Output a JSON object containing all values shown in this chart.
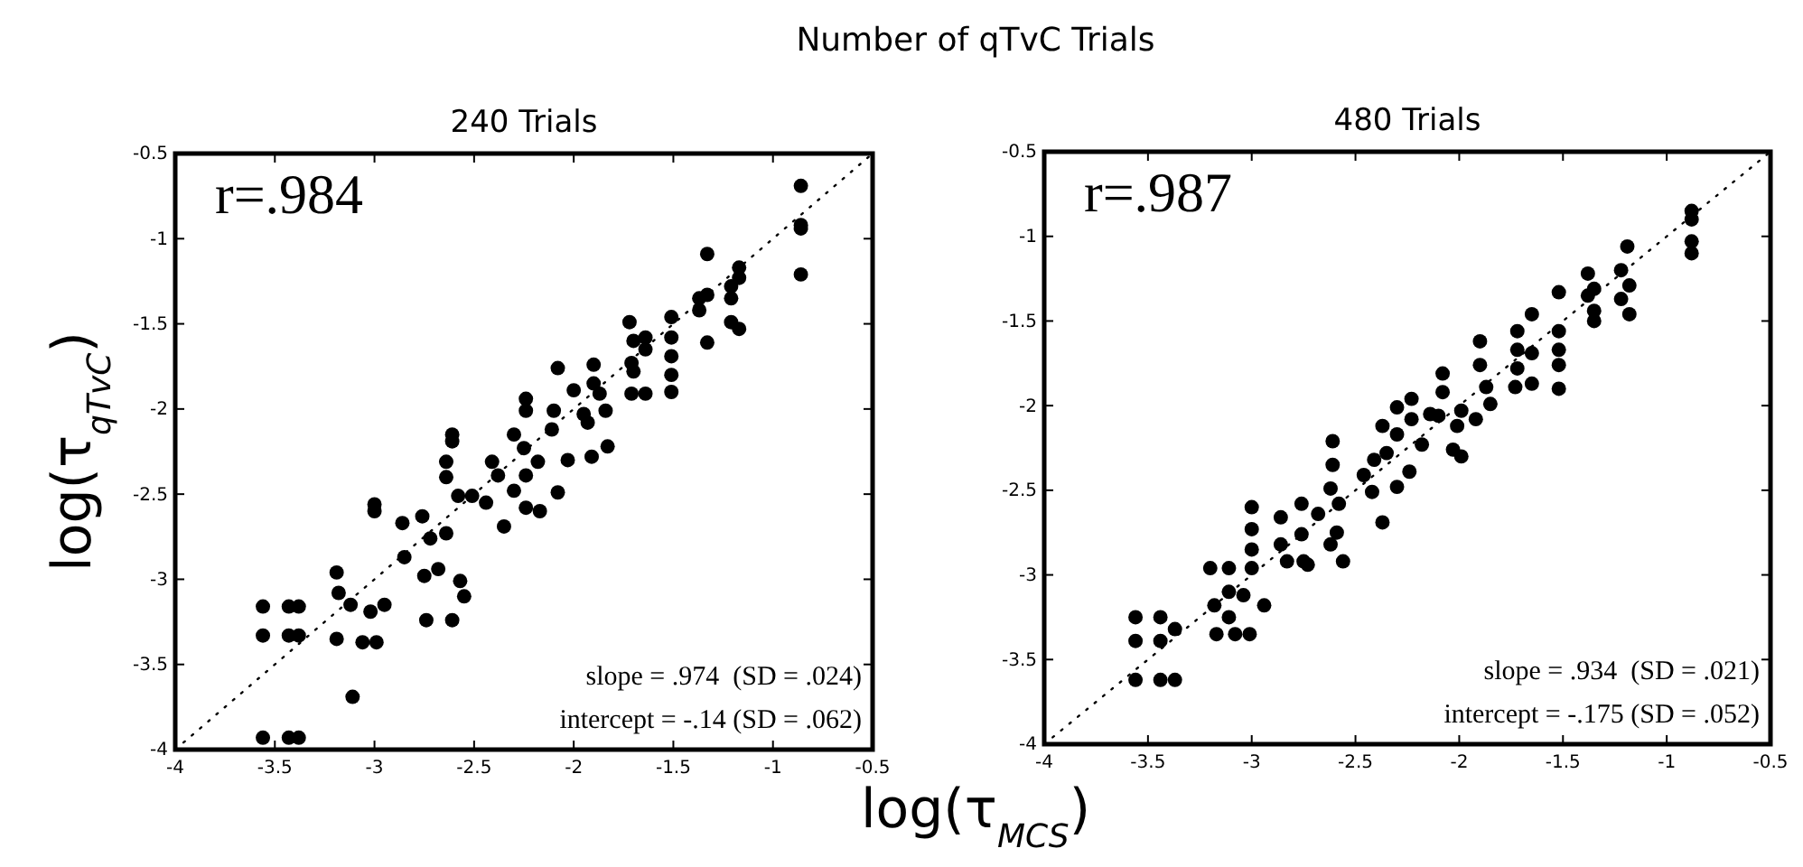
{
  "chart_data": [
    {
      "type": "scatter",
      "title": "Number of qTvC Trials",
      "subtitle": "240 Trials",
      "xlabel": "log(τ$_{MCS}$)",
      "ylabel": "log(τ$_{qTvC}$)",
      "xlim": [
        -4,
        -0.5
      ],
      "ylim": [
        -4,
        -0.5
      ],
      "xticks": [
        -4,
        -3.5,
        -3,
        -2.5,
        -2,
        -1.5,
        -1,
        -0.5
      ],
      "yticks": [
        -4,
        -3.5,
        -3,
        -2.5,
        -2,
        -1.5,
        -1,
        -0.5
      ],
      "grid": false,
      "annotations": [
        "r=.984",
        "slope = .974  (SD = .024)",
        "intercept = -.14 (SD = .062)"
      ],
      "series": [
        {
          "marker": "circle",
          "color": "#000000",
          "x": [
            -0.86,
            -0.86,
            -0.86,
            -0.86,
            -1.33,
            -1.33,
            -1.37,
            -1.37,
            -1.33,
            -1.21,
            -1.21,
            -1.21,
            -1.17,
            -1.17,
            -1.17,
            -1.51,
            -1.51,
            -1.51,
            -1.51,
            -1.51,
            -1.72,
            -1.7,
            -1.64,
            -1.64,
            -1.71,
            -1.7,
            -1.71,
            -1.64,
            -1.9,
            -1.9,
            -1.87,
            -1.84,
            -1.93,
            -2.0,
            -1.95,
            -2.08,
            -2.1,
            -2.11,
            -2.03,
            -1.91,
            -1.83,
            -2.08,
            -2.24,
            -2.24,
            -2.3,
            -2.25,
            -2.18,
            -2.24,
            -2.17,
            -2.24,
            -2.3,
            -2.41,
            -2.38,
            -2.61,
            -2.61,
            -2.64,
            -2.64,
            -2.58,
            -2.51,
            -2.44,
            -2.35,
            -2.86,
            -2.85,
            -2.76,
            -2.72,
            -2.68,
            -2.75,
            -2.74,
            -2.61,
            -2.57,
            -2.55,
            -2.64,
            -3.0,
            -3.0,
            -3.19,
            -3.18,
            -3.12,
            -3.02,
            -2.95,
            -3.19,
            -3.06,
            -2.99,
            -3.11,
            -3.56,
            -3.56,
            -3.43,
            -3.38,
            -3.43,
            -3.38,
            -3.56,
            -3.43,
            -3.38
          ],
          "values": [
            -0.69,
            -0.92,
            -0.94,
            -1.21,
            -1.09,
            -1.61,
            -1.35,
            -1.42,
            -1.33,
            -1.28,
            -1.35,
            -1.49,
            -1.17,
            -1.23,
            -1.53,
            -1.46,
            -1.58,
            -1.69,
            -1.8,
            -1.9,
            -1.49,
            -1.6,
            -1.58,
            -1.65,
            -1.73,
            -1.78,
            -1.91,
            -1.91,
            -1.74,
            -1.85,
            -1.91,
            -2.01,
            -2.08,
            -1.89,
            -2.03,
            -1.76,
            -2.01,
            -2.12,
            -2.3,
            -2.28,
            -2.22,
            -2.49,
            -1.94,
            -2.01,
            -2.15,
            -2.23,
            -2.31,
            -2.39,
            -2.6,
            -2.58,
            -2.48,
            -2.31,
            -2.39,
            -2.15,
            -2.19,
            -2.31,
            -2.4,
            -2.51,
            -2.51,
            -2.55,
            -2.69,
            -2.67,
            -2.87,
            -2.63,
            -2.76,
            -2.94,
            -2.98,
            -3.24,
            -3.24,
            -3.01,
            -3.1,
            -2.73,
            -2.56,
            -2.6,
            -2.96,
            -3.08,
            -3.15,
            -3.19,
            -3.15,
            -3.35,
            -3.37,
            -3.37,
            -3.69,
            -3.16,
            -3.33,
            -3.16,
            -3.16,
            -3.33,
            -3.33,
            -3.93,
            -3.93,
            -3.93
          ]
        },
        {
          "type": "line",
          "color": "#000000",
          "line_style": "dotted",
          "x": [
            -4,
            -0.5
          ],
          "values": [
            -4,
            -0.5
          ]
        }
      ]
    },
    {
      "type": "scatter",
      "subtitle": "480 Trials",
      "xlim": [
        -4,
        -0.5
      ],
      "ylim": [
        -4,
        -0.5
      ],
      "xticks": [
        -4,
        -3.5,
        -3,
        -2.5,
        -2,
        -1.5,
        -1,
        -0.5
      ],
      "yticks": [
        -4,
        -3.5,
        -3,
        -2.5,
        -2,
        -1.5,
        -1,
        -0.5
      ],
      "grid": false,
      "annotations": [
        "r=.987",
        "slope = .934  (SD = .021)",
        "intercept = -.175 (SD = .052)"
      ],
      "series": [
        {
          "marker": "circle",
          "color": "#000000",
          "x": [
            -0.88,
            -0.88,
            -0.88,
            -0.88,
            -1.19,
            -1.22,
            -1.18,
            -1.22,
            -1.18,
            -1.38,
            -1.35,
            -1.38,
            -1.35,
            -1.35,
            -1.52,
            -1.52,
            -1.52,
            -1.52,
            -1.52,
            -1.65,
            -1.72,
            -1.72,
            -1.65,
            -1.72,
            -1.73,
            -1.65,
            -1.9,
            -1.9,
            -1.87,
            -1.85,
            -1.92,
            -1.99,
            -2.01,
            -2.03,
            -1.99,
            -2.08,
            -2.08,
            -2.1,
            -2.14,
            -2.23,
            -2.23,
            -2.3,
            -2.3,
            -2.37,
            -2.18,
            -2.24,
            -2.3,
            -2.35,
            -2.41,
            -2.42,
            -2.46,
            -2.37,
            -2.61,
            -2.61,
            -2.62,
            -2.58,
            -2.59,
            -2.56,
            -2.62,
            -2.76,
            -2.76,
            -2.73,
            -2.68,
            -2.86,
            -2.86,
            -2.83,
            -2.75,
            -3.0,
            -3.0,
            -3.0,
            -3.0,
            -3.2,
            -3.18,
            -3.11,
            -3.11,
            -3.04,
            -2.94,
            -3.17,
            -3.08,
            -3.01,
            -3.11,
            -3.56,
            -3.56,
            -3.56,
            -3.44,
            -3.37,
            -3.44,
            -3.44,
            -3.37
          ],
          "values": [
            -0.85,
            -0.9,
            -1.03,
            -1.1,
            -1.06,
            -1.2,
            -1.29,
            -1.37,
            -1.46,
            -1.22,
            -1.31,
            -1.35,
            -1.44,
            -1.5,
            -1.33,
            -1.56,
            -1.67,
            -1.76,
            -1.9,
            -1.46,
            -1.56,
            -1.67,
            -1.69,
            -1.78,
            -1.89,
            -1.87,
            -1.62,
            -1.76,
            -1.89,
            -1.99,
            -2.08,
            -2.03,
            -2.12,
            -2.26,
            -2.3,
            -1.81,
            -1.92,
            -2.06,
            -2.05,
            -1.96,
            -2.08,
            -2.01,
            -2.17,
            -2.12,
            -2.23,
            -2.39,
            -2.48,
            -2.28,
            -2.32,
            -2.51,
            -2.41,
            -2.69,
            -2.21,
            -2.35,
            -2.49,
            -2.58,
            -2.75,
            -2.92,
            -2.82,
            -2.58,
            -2.76,
            -2.94,
            -2.64,
            -2.66,
            -2.82,
            -2.92,
            -2.92,
            -2.6,
            -2.73,
            -2.85,
            -2.96,
            -2.96,
            -3.18,
            -2.96,
            -3.1,
            -3.12,
            -3.18,
            -3.35,
            -3.35,
            -3.35,
            -3.25,
            -3.25,
            -3.39,
            -3.62,
            -3.25,
            -3.32,
            -3.39,
            -3.62,
            -3.62
          ]
        },
        {
          "type": "line",
          "color": "#000000",
          "line_style": "dotted",
          "x": [
            -4,
            -0.5
          ],
          "values": [
            -4,
            -0.5
          ]
        }
      ]
    }
  ]
}
